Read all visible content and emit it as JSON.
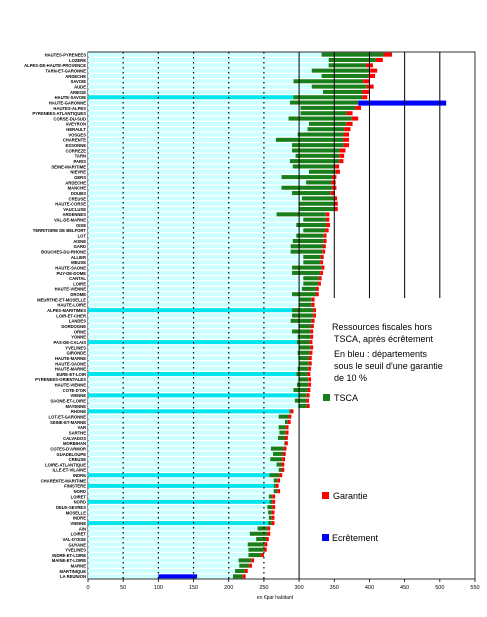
{
  "chart_data": {
    "type": "bar",
    "orientation": "horizontal",
    "stacked": true,
    "xlabel": "en €par habitant",
    "xlim": [
      0,
      550
    ],
    "xticks": [
      0,
      50,
      100,
      150,
      200,
      250,
      300,
      350,
      400,
      450,
      500,
      550
    ],
    "dotted_gridlines_at": [
      50,
      100,
      150,
      200,
      250
    ],
    "solid_gridlines_at": [
      300,
      350,
      400,
      450,
      500
    ],
    "grid": true,
    "title": "Ressources fiscales hors TSCA, après écrêtement",
    "subtitle": "En bleu : départements sous le seuil d'une garantie de 10 %",
    "legend_placement": "right",
    "colors": {
      "TSCA": "#1a7f1a",
      "Garantie": "#ff0000",
      "Ecretement": "#0000ff",
      "Ressources": "#ccffff",
      "Highlight": "#00e5ee"
    },
    "series": [
      {
        "name": "TSCA",
        "color_key": "TSCA"
      },
      {
        "name": "Garantie",
        "color_key": "Garantie"
      },
      {
        "name": "Ecrêtement",
        "color_key": "Ecretement"
      }
    ],
    "categories": [
      "HAUTES-PYRENEES",
      "LOZERE",
      "ALPES-DE-HAUTE-PROVENCE",
      "TARN-ET-GARONNE",
      "ARDECHE",
      "SAVOIE",
      "AUDE",
      "ARIEGE",
      "HAUTE-SAVOIE",
      "HAUTE-GARONNE",
      "HAUTES-ALPES",
      "PYRENEES-ATLANTIQUES",
      "CORSE-DU-SUD",
      "AVEYRON",
      "HERAULT",
      "VOSGES",
      "CHARENTE",
      "ESSONNE",
      "CORREZE",
      "TARN",
      "PARIS",
      "SEINE-MARITIME",
      "NIEVRE",
      "GERS",
      "ARDECHE",
      "MANCHE",
      "DOUBS",
      "CREUSE",
      "HAUTE-CORSE",
      "VAUCLUSE",
      "ARDENNES",
      "VAL-DE-MARNE",
      "OISE",
      "TERRITOIRE DE BELFORT",
      "LOT",
      "AISNE",
      "GARD",
      "BOUCHES-DU-RHONE",
      "ALLIER",
      "MEUSE",
      "HAUTE-SAONE",
      "PUY-DE-DOME",
      "CANTAL",
      "LOIRE",
      "HAUTE-VIENNE",
      "DROME",
      "MEURTHE-ET-MOSELLE",
      "HAUTE-LOIRE",
      "ALPES-MARITIMES",
      "LOIR-ET-CHER",
      "LANDES",
      "DORDOGNE",
      "ORNE",
      "YONNE",
      "PAS-DE-CALAIS",
      "YVELINES",
      "GIRONDE",
      "HAUTE-MARNE",
      "HAUTE-SAONE",
      "HAUTE-MARNE",
      "EURE-ET-LOIR",
      "PYRENEES-ORIENTALES",
      "HAUTE-VIENNE",
      "COTE-D'OR",
      "VIENNE",
      "SAONE-ET-LOIRE",
      "MAYENNE",
      "RHONE",
      "LOT-ET-GARONNE",
      "SEINE-ET-MARNE",
      "VAR",
      "SARTHE",
      "CALVADOS",
      "MORBIHAN",
      "COTES-D'ARMOR",
      "GUADELOUPE",
      "CREUSE",
      "LOIRE-ATLANTIQUE",
      "ILLE-ET-VILAINE",
      "INDRE",
      "CHARENTE-MARITIME",
      "FINISTERE",
      "NORD",
      "LOIRET",
      "NORD",
      "DEUX-SEVRES",
      "MOSELLE",
      "INDRE",
      "VIENNE",
      "AIN",
      "LOIRET",
      "VAL-D'OISE",
      "GUYANE",
      "YVELINES",
      "INDRE-ET-LOIRE",
      "MAINE-ET-LOIRE",
      "MARNE",
      "MARTINIQUE",
      "LA REUNION"
    ],
    "base_values": [
      332,
      342,
      342,
      318,
      332,
      292,
      318,
      334,
      292,
      287,
      302,
      302,
      285,
      314,
      312,
      298,
      267,
      290,
      290,
      295,
      287,
      291,
      314,
      275,
      310,
      275,
      290,
      304,
      300,
      300,
      268,
      306,
      296,
      306,
      296,
      291,
      288,
      288,
      306,
      306,
      290,
      290,
      306,
      306,
      304,
      290,
      300,
      300,
      290,
      290,
      288,
      299,
      290,
      298,
      297,
      300,
      298,
      299,
      300,
      298,
      296,
      299,
      297,
      292,
      299,
      294,
      299,
      286,
      271,
      280,
      271,
      272,
      270,
      279,
      260,
      263,
      259,
      268,
      271,
      258,
      264,
      264,
      264,
      257,
      258,
      255,
      256,
      257,
      256,
      241,
      230,
      239,
      227,
      228,
      228,
      214,
      215,
      209,
      206,
      100
    ],
    "tsca_values": [
      88,
      67,
      53,
      83,
      66,
      99,
      78,
      56,
      98,
      97,
      78,
      66,
      90,
      53,
      52,
      65,
      96,
      73,
      68,
      62,
      70,
      60,
      38,
      72,
      36,
      72,
      55,
      45,
      50,
      50,
      70,
      32,
      43,
      31,
      39,
      44,
      46,
      45,
      25,
      24,
      42,
      40,
      22,
      21,
      20,
      34,
      18,
      18,
      30,
      30,
      30,
      18,
      26,
      18,
      18,
      16,
      17,
      15,
      14,
      15,
      16,
      14,
      16,
      20,
      12,
      16,
      12,
      2,
      14,
      4,
      10,
      9,
      10,
      1,
      18,
      14,
      17,
      7,
      4,
      14,
      5,
      3,
      5,
      5,
      4,
      7,
      5,
      4,
      5,
      14,
      25,
      14,
      24,
      22,
      18,
      18,
      14,
      14,
      14,
      56
    ],
    "guarantee_values": [
      12,
      10,
      10,
      10,
      10,
      9,
      10,
      10,
      7,
      0,
      8,
      8,
      9,
      9,
      9,
      8,
      8,
      8,
      8,
      7,
      6,
      6,
      6,
      6,
      6,
      6,
      6,
      5,
      5,
      5,
      5,
      5,
      5,
      5,
      4,
      4,
      4,
      4,
      4,
      4,
      4,
      4,
      4,
      4,
      4,
      4,
      4,
      4,
      4,
      4,
      4,
      4,
      4,
      4,
      4,
      4,
      4,
      4,
      4,
      4,
      4,
      4,
      4,
      4,
      4,
      4,
      4,
      4,
      4,
      4,
      4,
      4,
      4,
      4,
      4,
      4,
      4,
      4,
      4,
      4,
      4,
      4,
      4,
      4,
      4,
      4,
      4,
      4,
      4,
      4,
      4,
      4,
      4,
      4,
      4,
      4,
      4,
      4,
      4,
      0
    ],
    "ecretement_values": [
      0,
      0,
      0,
      0,
      0,
      0,
      0,
      0,
      0,
      125,
      0,
      0,
      0,
      0,
      0,
      0,
      0,
      0,
      0,
      0,
      0,
      0,
      0,
      0,
      0,
      0,
      0,
      0,
      0,
      0,
      0,
      0,
      0,
      0,
      0,
      0,
      0,
      0,
      0,
      0,
      0,
      0,
      0,
      0,
      0,
      0,
      0,
      0,
      0,
      0,
      0,
      0,
      0,
      0,
      0,
      0,
      0,
      0,
      0,
      0,
      0,
      0,
      0,
      0,
      0,
      0,
      0,
      0,
      0,
      0,
      0,
      0,
      0,
      0,
      0,
      0,
      0,
      0,
      0,
      0,
      0,
      0,
      0,
      0,
      0,
      0,
      0,
      0,
      0,
      0,
      0,
      0,
      0,
      0,
      0,
      0,
      0,
      0,
      0,
      0
    ]
  },
  "legend": {
    "tsca": "TSCA",
    "garantie": "Garantie",
    "ecretement": "Ecrêtement"
  }
}
